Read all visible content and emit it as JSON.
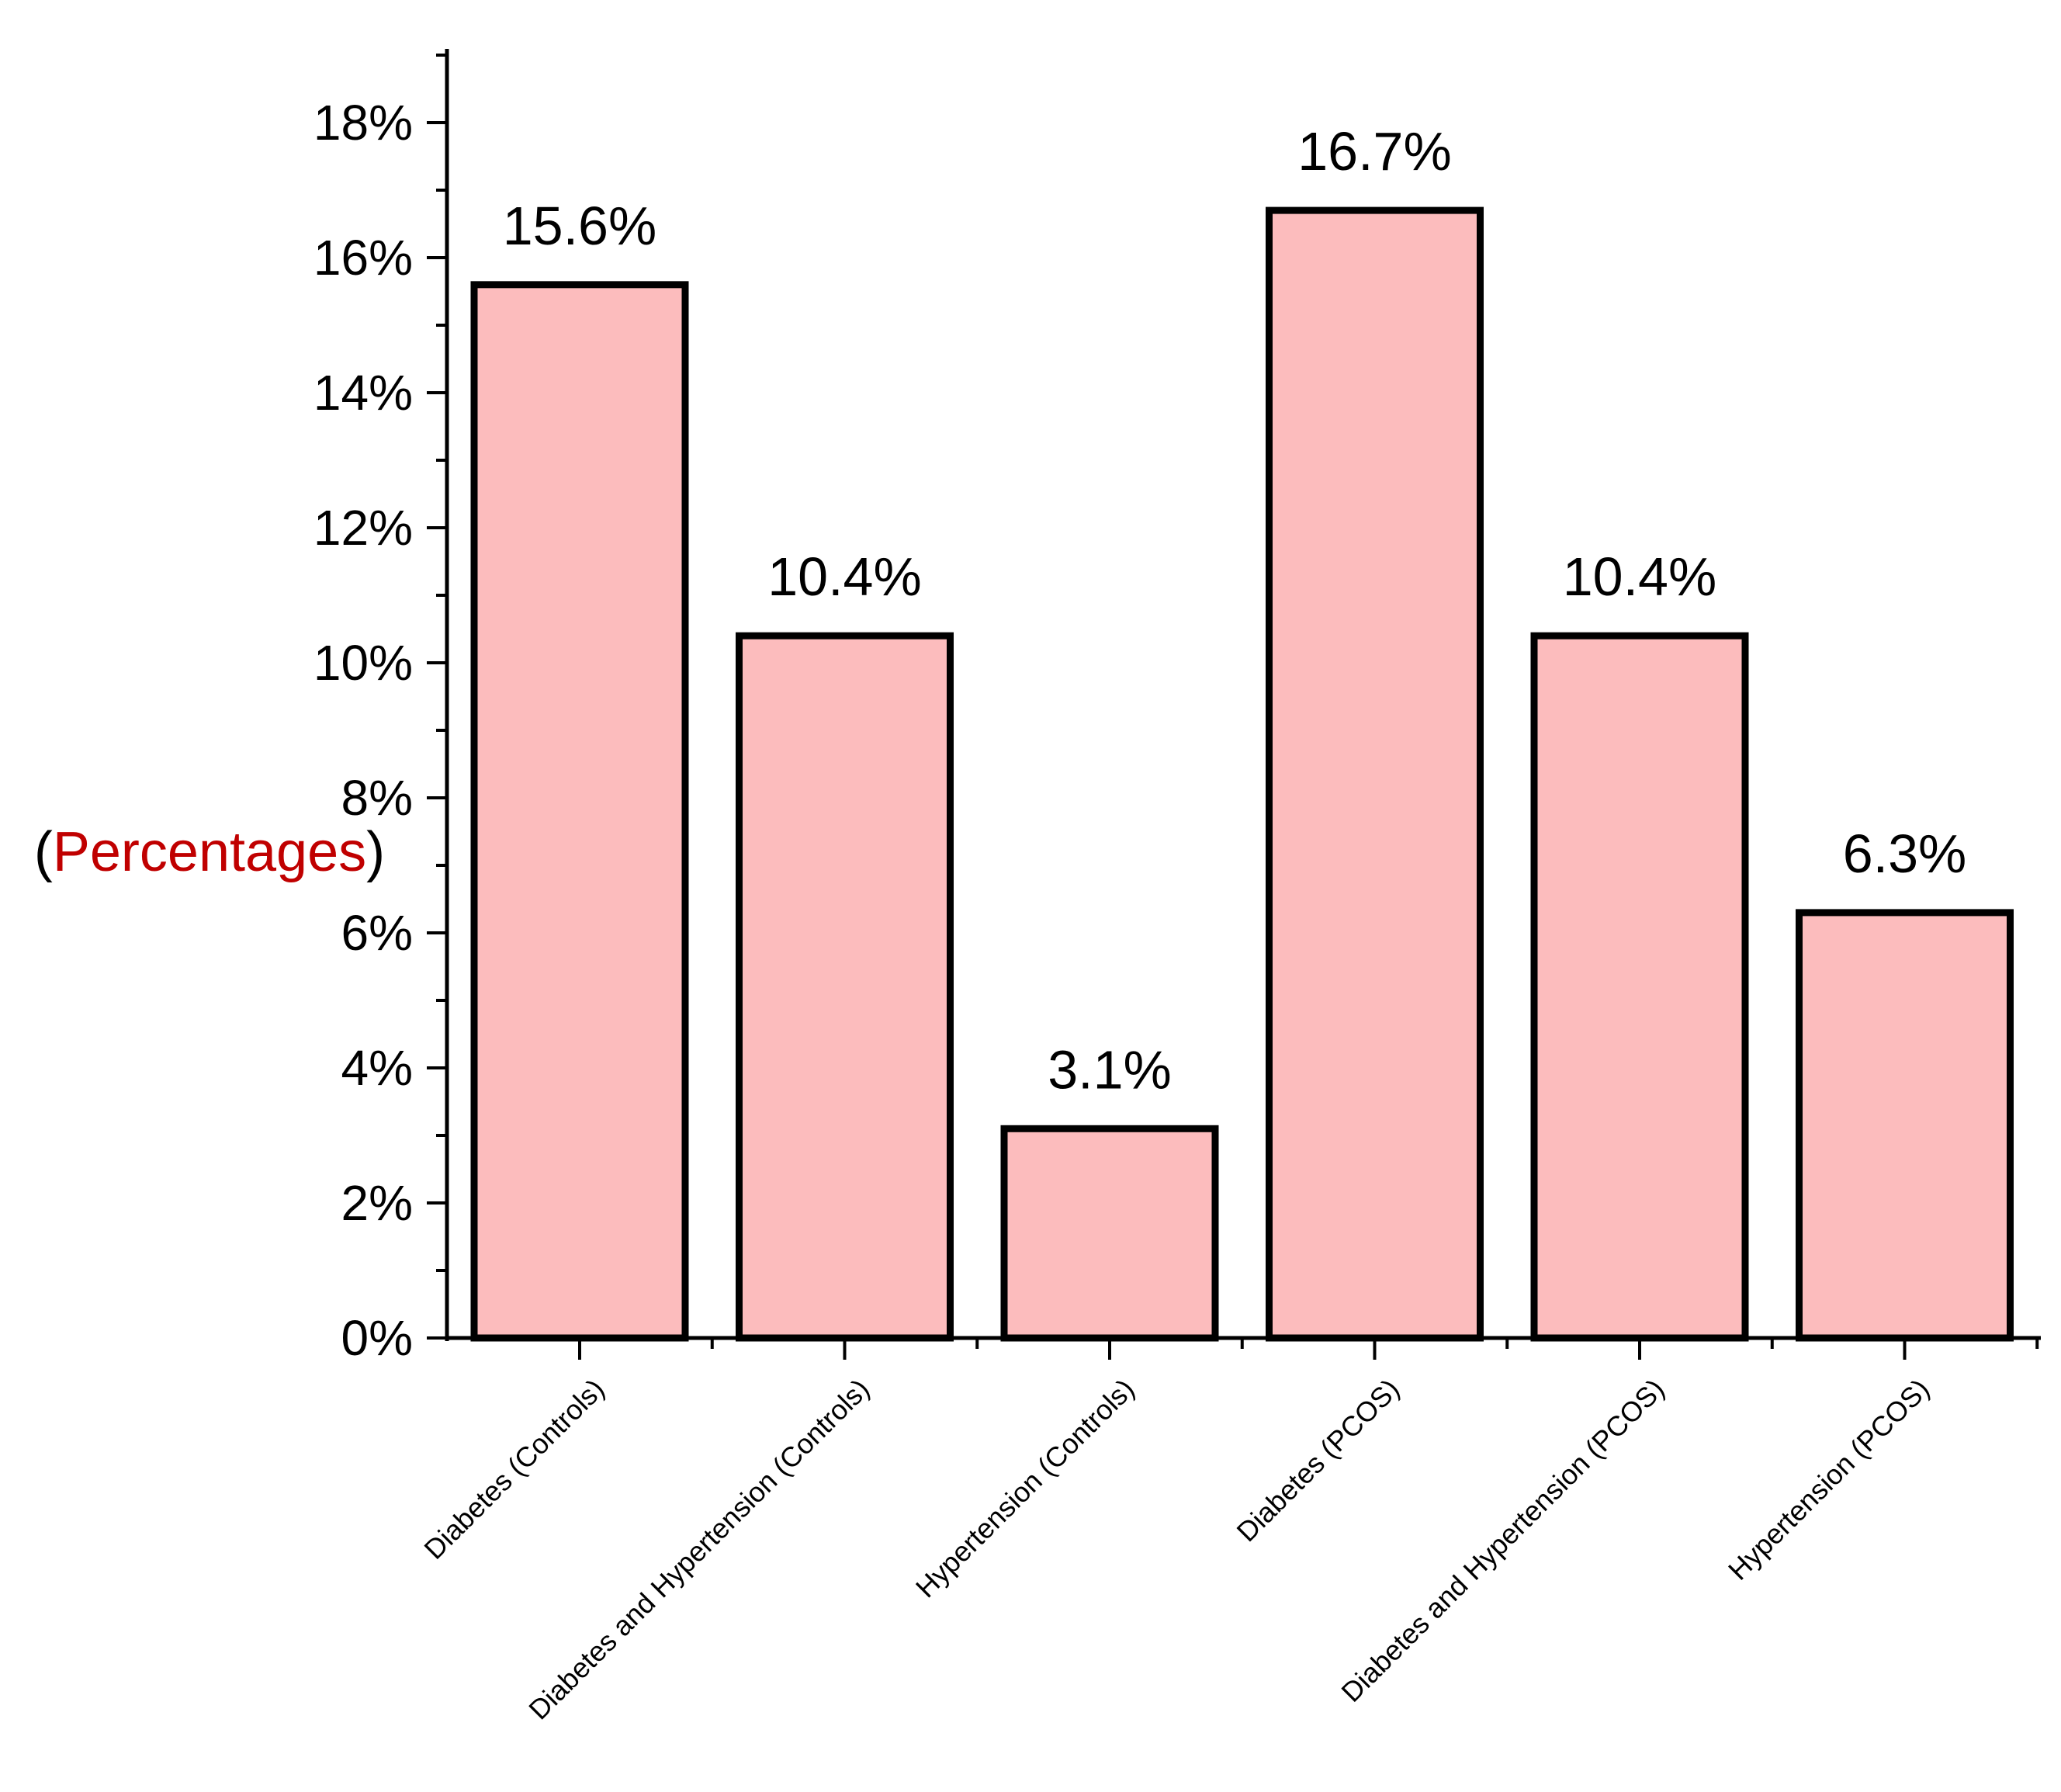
{
  "chart_data": {
    "type": "bar",
    "title": "",
    "xlabel": "",
    "ylabel": "Percentages",
    "ylim": [
      0,
      19
    ],
    "y_ticks": [
      0,
      2,
      4,
      6,
      8,
      10,
      12,
      14,
      16,
      18
    ],
    "y_tick_labels": [
      "0%",
      "2%",
      "4%",
      "6%",
      "8%",
      "10%",
      "12%",
      "14%",
      "16%",
      "18%"
    ],
    "y_minor_step": 1,
    "grid": false,
    "legend": "none",
    "categories": [
      "Diabetes (Controls)",
      "Diabetes and Hypertension (Controls)",
      "Hypertension (Controls)",
      "Diabetes (PCOS)",
      "Diabetes and Hypertension (PCOS)",
      "Hypertension (PCOS)"
    ],
    "values": [
      15.6,
      10.4,
      3.1,
      16.7,
      10.4,
      6.3
    ],
    "data_labels": [
      "15.6%",
      "10.4%",
      "3.1%",
      "16.7%",
      "10.4%",
      "6.3%"
    ],
    "colors": {
      "bar_fill": "#fcbcbd",
      "bar_stroke": "#000000",
      "ylabel_text": "#c00000",
      "ylabel_paren": "#000000"
    }
  }
}
